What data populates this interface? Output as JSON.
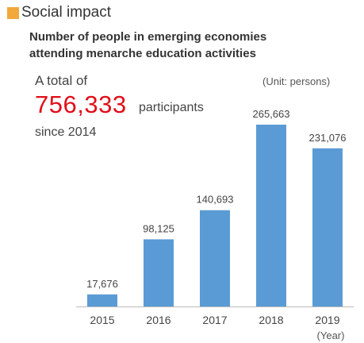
{
  "header": {
    "title": "Social impact",
    "subtitle_line1": "Number of people in emerging economies",
    "subtitle_line2": "attending menarche education activities",
    "accent_color": "#f2a93b"
  },
  "summary": {
    "prefix": "A total of",
    "total": "756,333",
    "suffix": "participants",
    "since": "since 2014",
    "highlight_color": "#e10e19"
  },
  "chart_data": {
    "type": "bar",
    "categories": [
      "2015",
      "2016",
      "2017",
      "2018",
      "2019"
    ],
    "values": [
      17676,
      98125,
      140693,
      265663,
      231076
    ],
    "value_labels": [
      "17,676",
      "98,125",
      "140,693",
      "265,663",
      "231,076"
    ],
    "unit_label": "(Unit: persons)",
    "xlabel": "(Year)",
    "bar_color": "#5b9bd5",
    "grid": false,
    "ylim": [
      0,
      265663
    ]
  }
}
